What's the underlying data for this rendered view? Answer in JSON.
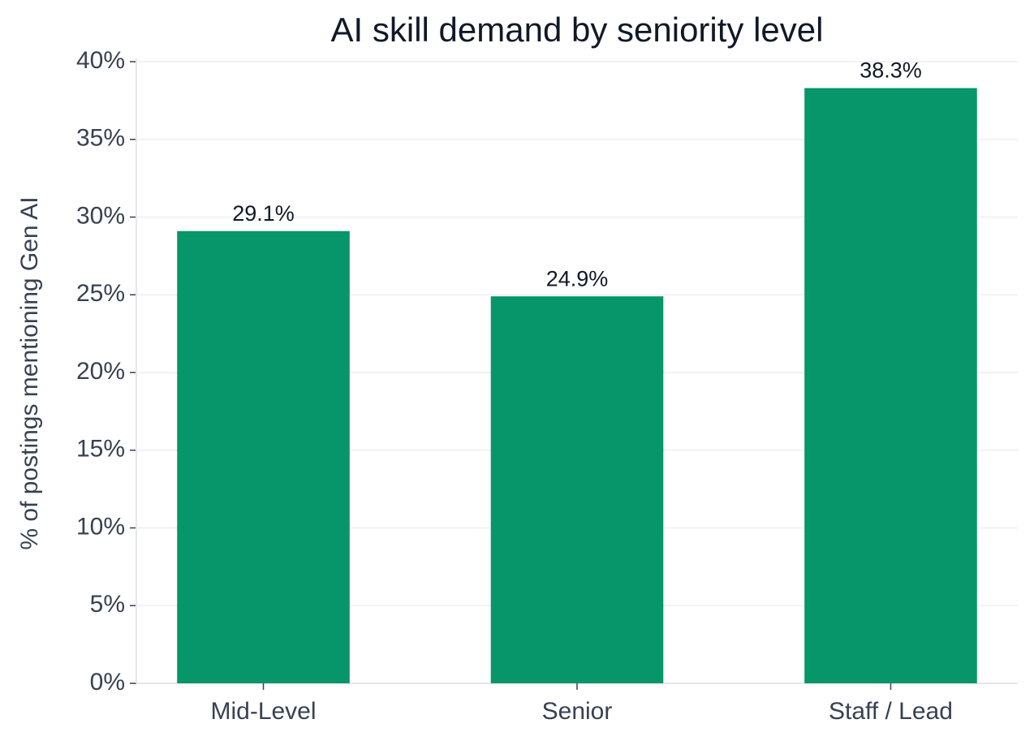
{
  "chart_data": {
    "type": "bar",
    "title": "AI skill demand by seniority level",
    "y_label": "% of postings mentioning Gen AI",
    "categories": [
      "Mid-Level",
      "Senior",
      "Staff / Lead"
    ],
    "values": [
      29.1,
      24.9,
      38.3
    ],
    "value_labels": [
      "29.1%",
      "24.9%",
      "38.3%"
    ],
    "color": "#079669",
    "ylim": [
      0,
      40
    ],
    "yticks": [
      {
        "value": 0,
        "label": "0%"
      },
      {
        "value": 5,
        "label": "5%"
      },
      {
        "value": 10,
        "label": "10%"
      },
      {
        "value": 15,
        "label": "15%"
      },
      {
        "value": 20,
        "label": "20%"
      },
      {
        "value": 25,
        "label": "25%"
      },
      {
        "value": 30,
        "label": "30%"
      },
      {
        "value": 35,
        "label": "35%"
      },
      {
        "value": 40,
        "label": "40%"
      }
    ],
    "grid": true
  }
}
